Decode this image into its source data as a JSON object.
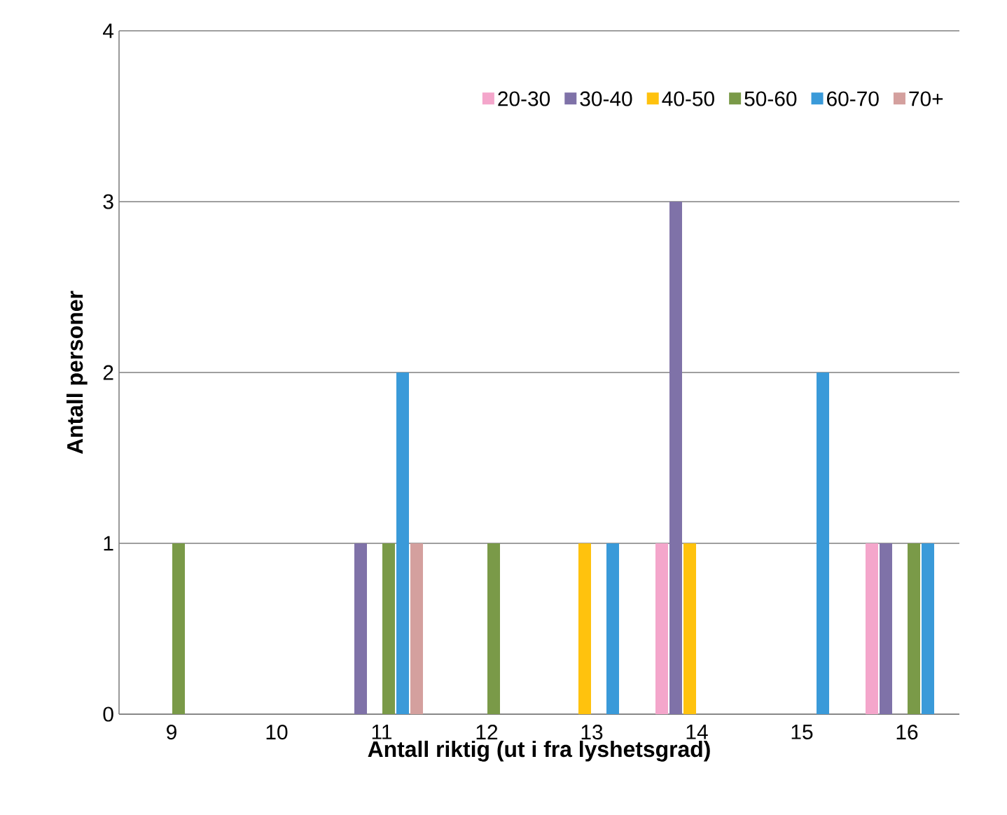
{
  "chart_data": {
    "type": "bar",
    "xlabel": "Antall riktig (ut i fra lyshetsgrad)",
    "ylabel": "Antall personer",
    "categories": [
      "9",
      "10",
      "11",
      "12",
      "13",
      "14",
      "15",
      "16"
    ],
    "series": [
      {
        "name": "20-30",
        "color": "#f4a6cb",
        "values": [
          0,
          0,
          0,
          0,
          0,
          1,
          0,
          1
        ]
      },
      {
        "name": "30-40",
        "color": "#7f72a8",
        "values": [
          0,
          0,
          1,
          0,
          0,
          3,
          0,
          1
        ]
      },
      {
        "name": "40-50",
        "color": "#ffc20e",
        "values": [
          0,
          0,
          0,
          0,
          1,
          1,
          0,
          0
        ]
      },
      {
        "name": "50-60",
        "color": "#7a9a48",
        "values": [
          1,
          0,
          1,
          1,
          0,
          0,
          0,
          1
        ]
      },
      {
        "name": "60-70",
        "color": "#3a9ad9",
        "values": [
          0,
          0,
          2,
          0,
          1,
          0,
          2,
          1
        ]
      },
      {
        "name": "70+",
        "color": "#d4a09e",
        "values": [
          0,
          0,
          1,
          0,
          0,
          0,
          0,
          0
        ]
      }
    ],
    "ylim": [
      0,
      4
    ],
    "yticks": [
      0,
      1,
      2,
      3,
      4
    ],
    "grid": "y",
    "legend": "top"
  }
}
